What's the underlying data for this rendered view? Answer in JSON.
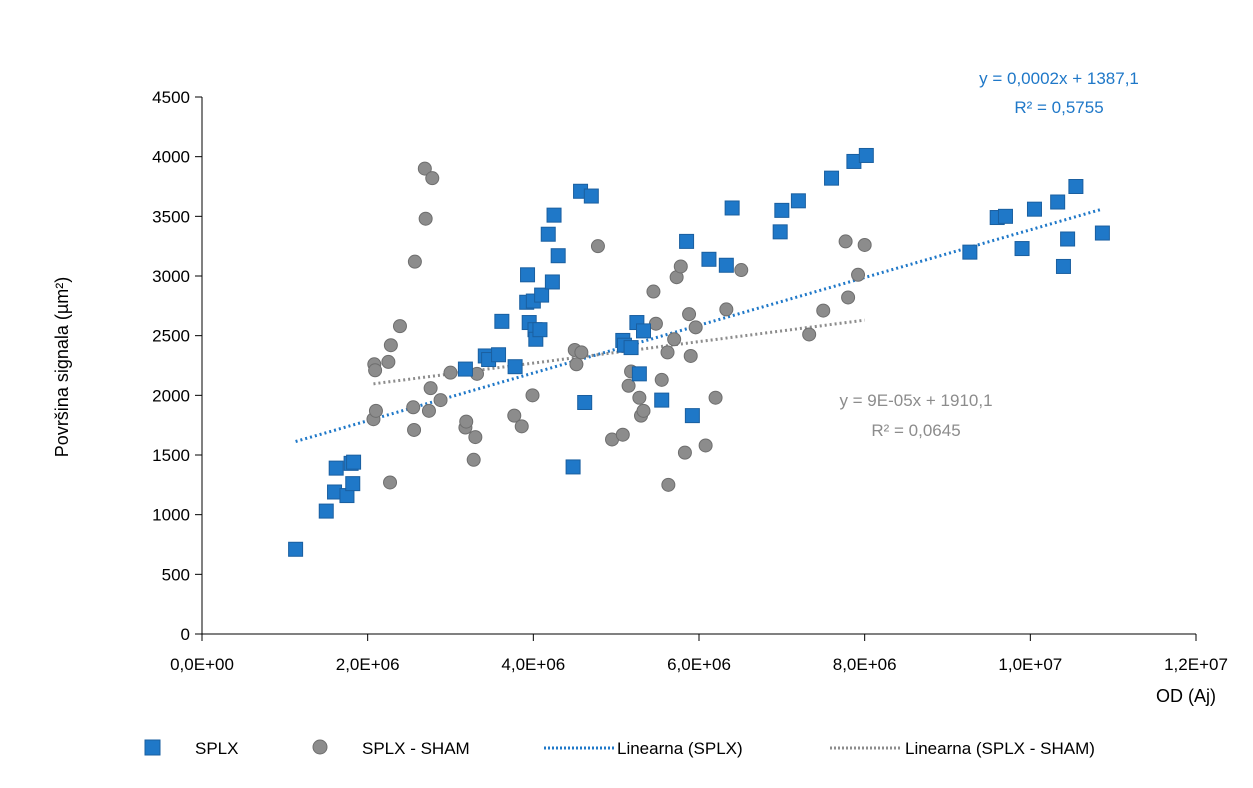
{
  "chart_data": {
    "type": "scatter",
    "xlabel": "OD (Aj)",
    "ylabel": "Površina signala (µm²)",
    "xlim": [
      0,
      12000000
    ],
    "ylim": [
      0,
      4500
    ],
    "x_ticks": [
      0,
      2000000,
      4000000,
      6000000,
      8000000,
      10000000,
      12000000
    ],
    "x_tick_labels": [
      "0,0E+00",
      "2,0E+06",
      "4,0E+06",
      "6,0E+06",
      "8,0E+06",
      "1,0E+07",
      "1,2E+07"
    ],
    "y_ticks": [
      0,
      500,
      1000,
      1500,
      2000,
      2500,
      3000,
      3500,
      4000,
      4500
    ],
    "y_tick_labels": [
      "0",
      "500",
      "1000",
      "1500",
      "2000",
      "2500",
      "3000",
      "3500",
      "4000",
      "4500"
    ],
    "grid": false,
    "legend_position": "bottom",
    "series": [
      {
        "name": "SPLX",
        "marker": "square",
        "color": "#1f78c8",
        "points": [
          [
            1130000,
            710
          ],
          [
            1500000,
            1030
          ],
          [
            1600000,
            1190
          ],
          [
            1620000,
            1390
          ],
          [
            1750000,
            1160
          ],
          [
            1800000,
            1430
          ],
          [
            1820000,
            1260
          ],
          [
            1830000,
            1440
          ],
          [
            3180000,
            2220
          ],
          [
            3420000,
            2330
          ],
          [
            3460000,
            2300
          ],
          [
            3580000,
            2340
          ],
          [
            3620000,
            2620
          ],
          [
            3780000,
            2240
          ],
          [
            3920000,
            2780
          ],
          [
            3930000,
            3010
          ],
          [
            3950000,
            2610
          ],
          [
            4000000,
            2790
          ],
          [
            4020000,
            2550
          ],
          [
            4030000,
            2470
          ],
          [
            4080000,
            2550
          ],
          [
            4100000,
            2840
          ],
          [
            4180000,
            3350
          ],
          [
            4230000,
            2950
          ],
          [
            4250000,
            3510
          ],
          [
            4300000,
            3170
          ],
          [
            4480000,
            1400
          ],
          [
            4570000,
            3710
          ],
          [
            4620000,
            1940
          ],
          [
            4700000,
            3670
          ],
          [
            5080000,
            2460
          ],
          [
            5100000,
            2420
          ],
          [
            5180000,
            2400
          ],
          [
            5250000,
            2610
          ],
          [
            5280000,
            2180
          ],
          [
            5330000,
            2540
          ],
          [
            5550000,
            1960
          ],
          [
            5850000,
            3290
          ],
          [
            5920000,
            1830
          ],
          [
            6120000,
            3140
          ],
          [
            6330000,
            3090
          ],
          [
            6400000,
            3570
          ],
          [
            6980000,
            3370
          ],
          [
            7000000,
            3550
          ],
          [
            7200000,
            3630
          ],
          [
            7600000,
            3820
          ],
          [
            7870000,
            3960
          ],
          [
            8020000,
            4010
          ],
          [
            9270000,
            3200
          ],
          [
            9600000,
            3490
          ],
          [
            9700000,
            3500
          ],
          [
            9900000,
            3230
          ],
          [
            10050000,
            3560
          ],
          [
            10330000,
            3620
          ],
          [
            10400000,
            3080
          ],
          [
            10450000,
            3310
          ],
          [
            10550000,
            3750
          ],
          [
            10870000,
            3360
          ]
        ]
      },
      {
        "name": "SPLX - SHAM",
        "marker": "circle",
        "color": "#8c8c8c",
        "points": [
          [
            2070000,
            1800
          ],
          [
            2080000,
            2260
          ],
          [
            2090000,
            2210
          ],
          [
            2100000,
            1870
          ],
          [
            2250000,
            2280
          ],
          [
            2270000,
            1270
          ],
          [
            2280000,
            2420
          ],
          [
            2390000,
            2580
          ],
          [
            2550000,
            1900
          ],
          [
            2560000,
            1710
          ],
          [
            2570000,
            3120
          ],
          [
            2690000,
            3900
          ],
          [
            2700000,
            3480
          ],
          [
            2740000,
            1870
          ],
          [
            2760000,
            2060
          ],
          [
            2780000,
            3820
          ],
          [
            2880000,
            1960
          ],
          [
            3000000,
            2190
          ],
          [
            3180000,
            1730
          ],
          [
            3190000,
            1780
          ],
          [
            3280000,
            1460
          ],
          [
            3300000,
            1650
          ],
          [
            3320000,
            2180
          ],
          [
            3770000,
            1830
          ],
          [
            3860000,
            1740
          ],
          [
            3990000,
            2000
          ],
          [
            4500000,
            2380
          ],
          [
            4520000,
            2260
          ],
          [
            4580000,
            2360
          ],
          [
            4780000,
            3250
          ],
          [
            4950000,
            1630
          ],
          [
            5080000,
            1670
          ],
          [
            5150000,
            2080
          ],
          [
            5180000,
            2200
          ],
          [
            5280000,
            1980
          ],
          [
            5300000,
            1830
          ],
          [
            5330000,
            1870
          ],
          [
            5450000,
            2870
          ],
          [
            5480000,
            2600
          ],
          [
            5550000,
            2130
          ],
          [
            5620000,
            2360
          ],
          [
            5630000,
            1250
          ],
          [
            5700000,
            2470
          ],
          [
            5730000,
            2990
          ],
          [
            5780000,
            3080
          ],
          [
            5830000,
            1520
          ],
          [
            5880000,
            2680
          ],
          [
            5900000,
            2330
          ],
          [
            5960000,
            2570
          ],
          [
            6080000,
            1580
          ],
          [
            6200000,
            1980
          ],
          [
            6330000,
            2720
          ],
          [
            6510000,
            3050
          ],
          [
            7330000,
            2510
          ],
          [
            7500000,
            2710
          ],
          [
            7770000,
            3290
          ],
          [
            7800000,
            2820
          ],
          [
            7920000,
            3010
          ],
          [
            8000000,
            3260
          ]
        ]
      }
    ],
    "trendlines": [
      {
        "name": "Linearna (SPLX)",
        "color": "#1f78c8",
        "slope": 0.0002,
        "intercept": 1387.1,
        "x_range": [
          1130000,
          10870000
        ],
        "equation": "y = 0,0002x + 1387,1",
        "r2": "R² = 0,5755"
      },
      {
        "name": "Linearna (SPLX - SHAM)",
        "color": "#8c8c8c",
        "slope": 9e-05,
        "intercept": 1910.1,
        "x_range": [
          2070000,
          8000000
        ],
        "equation": "y = 9E-05x + 1910,1",
        "r2": "R² = 0,0645"
      }
    ]
  }
}
